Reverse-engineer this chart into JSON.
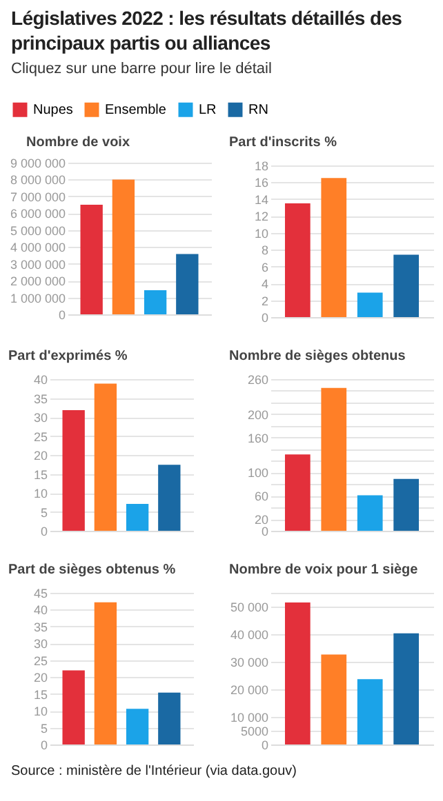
{
  "chart_data": [
    {
      "type": "other",
      "title": "Législatives 2022 : les résultats détaillés des principaux partis ou alliances",
      "subtitle": "Cliquez sur une barre pour lire le détail",
      "annotations": [
        "Source : ministère de l'Intérieur (via data.gouv)"
      ]
    },
    {
      "type": "bar",
      "title": "Nombre de voix",
      "categories": [
        null
      ],
      "series": [
        {
          "name": "Nupes",
          "color": "#e3303b",
          "values": [
            6500000
          ]
        },
        {
          "name": "Ensemble",
          "color": "#ff7f27",
          "values": [
            8000000
          ]
        },
        {
          "name": "LR",
          "color": "#1ba3e8",
          "values": [
            1430000
          ]
        },
        {
          "name": "RN",
          "color": "#1a69a3",
          "values": [
            3580000
          ]
        }
      ],
      "ylim": [
        0,
        9000000
      ],
      "yticks": [
        {
          "value": 0,
          "label": "0"
        },
        {
          "value": 1000000,
          "label": "1 000 000"
        },
        {
          "value": 2000000,
          "label": "2 000 000"
        },
        {
          "value": 3000000,
          "label": "3 000 000"
        },
        {
          "value": 4000000,
          "label": "4 000 000"
        },
        {
          "value": 5000000,
          "label": "5 000 000"
        },
        {
          "value": 6000000,
          "label": "6 000 000"
        },
        {
          "value": 7000000,
          "label": "7 000 000"
        },
        {
          "value": 8000000,
          "label": "8 000 000"
        },
        {
          "value": 9000000,
          "label": "9 000 000"
        }
      ],
      "grid": "y",
      "tick_labels": "y",
      "legend": "top"
    },
    {
      "type": "bar",
      "title": "Part d'inscrits %",
      "categories": [
        null
      ],
      "series": [
        {
          "color": "#e3303b",
          "values": [
            13.5
          ]
        },
        {
          "color": "#ff7f27",
          "values": [
            16.5
          ]
        },
        {
          "color": "#1ba3e8",
          "values": [
            2.9
          ]
        },
        {
          "color": "#1a69a3",
          "values": [
            7.4
          ]
        }
      ],
      "ylim": [
        0,
        18
      ],
      "yticks": [
        0,
        2,
        4,
        6,
        8,
        10,
        12,
        14,
        16,
        18
      ],
      "grid": "y",
      "tick_labels": "y"
    },
    {
      "type": "bar",
      "title": "Part d'exprimés %",
      "categories": [
        null
      ],
      "series": [
        {
          "color": "#e3303b",
          "values": [
            31.8
          ]
        },
        {
          "color": "#ff7f27",
          "values": [
            38.8
          ]
        },
        {
          "color": "#1ba3e8",
          "values": [
            7.1
          ]
        },
        {
          "color": "#1a69a3",
          "values": [
            17.4
          ]
        }
      ],
      "ylim": [
        0,
        40
      ],
      "yticks": [
        0,
        5,
        10,
        15,
        20,
        25,
        30,
        35,
        40
      ],
      "grid": "y",
      "tick_labels": "y"
    },
    {
      "type": "bar",
      "title": "Nombre de sièges obtenus",
      "categories": [
        null
      ],
      "series": [
        {
          "color": "#e3303b",
          "values": [
            131
          ]
        },
        {
          "color": "#ff7f27",
          "values": [
            245
          ]
        },
        {
          "color": "#1ba3e8",
          "values": [
            61
          ]
        },
        {
          "color": "#1a69a3",
          "values": [
            89
          ]
        }
      ],
      "ylim": [
        0,
        260
      ],
      "yticks": [
        0,
        20,
        {
          "value": 40,
          "label": null
        },
        60,
        {
          "value": 80,
          "label": null
        },
        100,
        {
          "value": 120,
          "label": null
        },
        {
          "value": 140,
          "label": null
        },
        160,
        {
          "value": 180,
          "label": null
        },
        200,
        {
          "value": 220,
          "label": null
        },
        {
          "value": 240,
          "label": null
        },
        260
      ],
      "grid": "y",
      "tick_labels": "y"
    },
    {
      "type": "bar",
      "title": "Part de sièges obtenus %",
      "categories": [
        null
      ],
      "series": [
        {
          "color": "#e3303b",
          "values": [
            22.0
          ]
        },
        {
          "color": "#ff7f27",
          "values": [
            42.2
          ]
        },
        {
          "color": "#1ba3e8",
          "values": [
            10.6
          ]
        },
        {
          "color": "#1a69a3",
          "values": [
            15.4
          ]
        }
      ],
      "ylim": [
        0,
        45
      ],
      "yticks": [
        0,
        5,
        10,
        15,
        20,
        25,
        30,
        35,
        40,
        45
      ],
      "grid": "y",
      "tick_labels": "y"
    },
    {
      "type": "bar",
      "title": "Nombre de voix pour 1 siège",
      "categories": [
        null
      ],
      "series": [
        {
          "color": "#e3303b",
          "values": [
            51500
          ]
        },
        {
          "color": "#ff7f27",
          "values": [
            32600
          ]
        },
        {
          "color": "#1ba3e8",
          "values": [
            23700
          ]
        },
        {
          "color": "#1a69a3",
          "values": [
            40300
          ]
        }
      ],
      "ylim": [
        0,
        55000
      ],
      "yticks": [
        {
          "value": 0,
          "label": "0"
        },
        {
          "value": 5000,
          "label": "5000"
        },
        {
          "value": 10000,
          "label": "10 000"
        },
        {
          "value": 20000,
          "label": "20 000"
        },
        {
          "value": 30000,
          "label": "30 000"
        },
        {
          "value": 40000,
          "label": "40 000"
        },
        {
          "value": 50000,
          "label": "50 000"
        },
        {
          "value": 55000,
          "label": null
        }
      ],
      "grid": "y",
      "tick_labels": "y"
    }
  ]
}
